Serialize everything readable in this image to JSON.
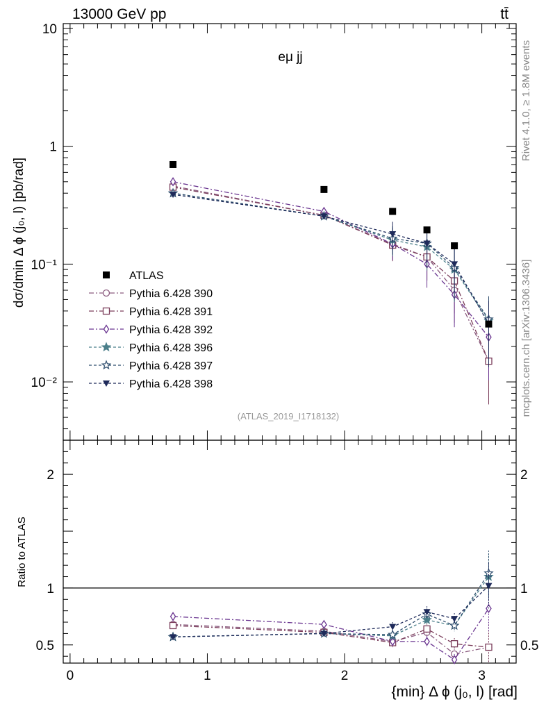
{
  "header": {
    "energy_label": "13000 GeV pp",
    "process_label": "tt̄",
    "channel_label": "eμ jj",
    "analysis_id": "(ATLAS_2019_I1718132)",
    "rivet_label": "Rivet 4.1.0, ≥ 1.8M events",
    "mcplots_label": "mcplots.cern.ch [arXiv:1306.3436]"
  },
  "chart_data": {
    "type": "scatter",
    "x": [
      0.75,
      1.85,
      2.35,
      2.6,
      2.8,
      3.05
    ],
    "xlim": [
      -0.05,
      3.25
    ],
    "xlabel": "{min} Δ ϕ (j₀, l) [rad]",
    "main": {
      "ylabel": "dσ/dmin Δ ϕ (j₀, l) [pb/rad]",
      "yscale": "log",
      "ylim": [
        0.0032,
        11
      ],
      "y_ticks": [
        {
          "value": 10,
          "label": "10"
        },
        {
          "value": 1,
          "label": "1"
        },
        {
          "value": 0.1,
          "label": "10⁻¹"
        },
        {
          "value": 0.01,
          "label": "10⁻²"
        }
      ],
      "data": {
        "name": "ATLAS",
        "values": [
          0.7,
          0.43,
          0.28,
          0.195,
          0.143,
          0.031
        ]
      },
      "series": [
        {
          "name": "Pythia 6.428 390",
          "color": "#8a5a7e",
          "marker": "circle",
          "dash": "7,3,2,3",
          "values": [
            0.46,
            0.26,
            0.148,
            0.115,
            0.06,
            0.015
          ]
        },
        {
          "name": "Pythia 6.428 391",
          "color": "#7a3c5a",
          "marker": "square",
          "dash": "7,3,2,3",
          "values": [
            0.45,
            0.26,
            0.145,
            0.115,
            0.072,
            0.015
          ]
        },
        {
          "name": "Pythia 6.428 392",
          "color": "#6a3590",
          "marker": "diamond",
          "dash": "7,3,2,3",
          "values": [
            0.5,
            0.28,
            0.148,
            0.1,
            0.055,
            0.024
          ]
        },
        {
          "name": "Pythia 6.428 396",
          "color": "#4b7f8a",
          "marker": "star",
          "dash": "4,3",
          "values": [
            0.4,
            0.255,
            0.16,
            0.14,
            0.09,
            0.033
          ]
        },
        {
          "name": "Pythia 6.428 397",
          "color": "#2f4e6e",
          "marker": "star-open",
          "dash": "4,3",
          "values": [
            0.4,
            0.255,
            0.165,
            0.15,
            0.093,
            0.034
          ]
        },
        {
          "name": "Pythia 6.428 398",
          "color": "#1e2a5a",
          "marker": "triangle-down",
          "dash": "4,3",
          "values": [
            0.39,
            0.255,
            0.18,
            0.15,
            0.1,
            0.031
          ]
        }
      ]
    },
    "ratio": {
      "ylabel": "Ratio to ATLAS",
      "ylim": [
        0.34,
        2.3
      ],
      "y_ticks": [
        {
          "value": 2,
          "label": "2"
        },
        {
          "value": 1,
          "label": "1"
        },
        {
          "value": 0.5,
          "label": "0.5"
        }
      ],
      "reference_line": 1,
      "series": [
        {
          "name": "Pythia 6.428 390",
          "values": [
            0.68,
            0.62,
            0.53,
            0.61,
            0.42,
            0.48
          ]
        },
        {
          "name": "Pythia 6.428 391",
          "values": [
            0.67,
            0.61,
            0.52,
            0.64,
            0.51,
            0.48
          ]
        },
        {
          "name": "Pythia 6.428 392",
          "values": [
            0.75,
            0.68,
            0.53,
            0.53,
            0.37,
            0.82
          ]
        },
        {
          "name": "Pythia 6.428 396",
          "values": [
            0.57,
            0.6,
            0.58,
            0.72,
            0.67,
            1.1
          ]
        },
        {
          "name": "Pythia 6.428 397",
          "values": [
            0.57,
            0.6,
            0.59,
            0.77,
            0.67,
            1.13
          ]
        },
        {
          "name": "Pythia 6.428 398",
          "values": [
            0.57,
            0.6,
            0.66,
            0.79,
            0.73,
            1.02
          ]
        }
      ]
    },
    "x_ticks": [
      {
        "value": 0,
        "label": "0"
      },
      {
        "value": 1,
        "label": "1"
      },
      {
        "value": 2,
        "label": "2"
      },
      {
        "value": 3,
        "label": "3"
      }
    ]
  }
}
